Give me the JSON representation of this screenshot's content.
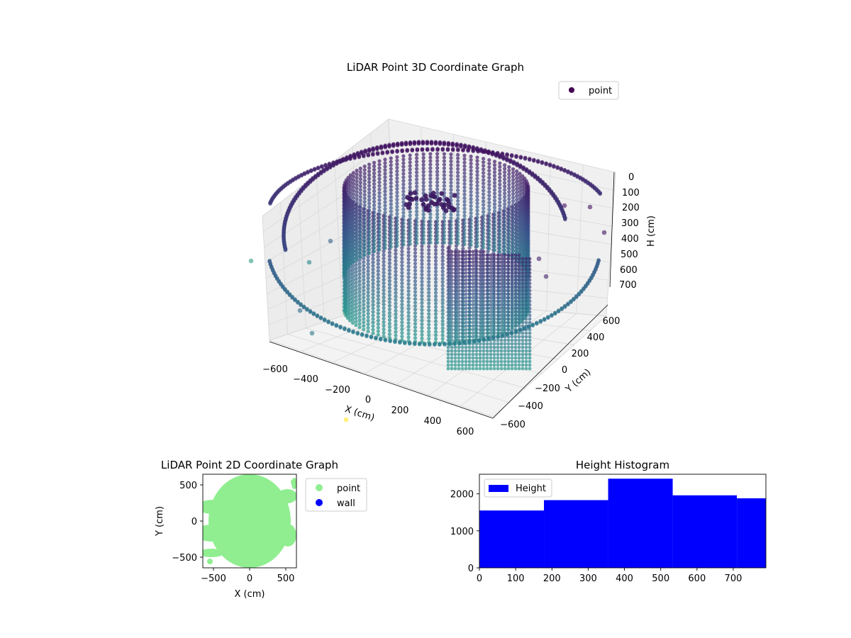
{
  "chart_data": [
    {
      "type": "scatter3d",
      "title": "LiDAR Point 3D Coordinate Graph",
      "xlabel": "X (cm)",
      "ylabel": "Y (cm)",
      "zlabel": "H (cm)",
      "xlim": [
        -650,
        650
      ],
      "ylim": [
        -650,
        650
      ],
      "zlim": [
        0,
        780
      ],
      "zinverted": true,
      "xticks": [
        "−600",
        "−400",
        "−200",
        "0",
        "200",
        "400",
        "600"
      ],
      "yticks": [
        "600",
        "400",
        "200",
        "0",
        "−200",
        "−400",
        "−600"
      ],
      "zticks": [
        "0",
        "100",
        "200",
        "300",
        "400",
        "500",
        "600",
        "700"
      ],
      "colormap": "viridis",
      "legend": {
        "placement": "top-right",
        "entries": [
          {
            "name": "point",
            "color": "#440154"
          }
        ]
      },
      "grid": true
    },
    {
      "type": "scatter",
      "title": "LiDAR Point 2D Coordinate Graph",
      "xlabel": "X (cm)",
      "ylabel": "Y (cm)",
      "xlim": [
        -650,
        650
      ],
      "ylim": [
        -650,
        650
      ],
      "xticks": [
        "−500",
        "0",
        "500"
      ],
      "yticks": [
        "500",
        "0",
        "−500"
      ],
      "series": [
        {
          "name": "point",
          "color": "#90ee90"
        },
        {
          "name": "wall",
          "color": "#0000ff"
        }
      ],
      "legend": {
        "placement": "outside-right"
      }
    },
    {
      "type": "bar",
      "title": "Height Histogram",
      "xlabel": "",
      "ylabel": "",
      "bins": [
        [
          0,
          178
        ],
        [
          178,
          355
        ],
        [
          355,
          533
        ],
        [
          533,
          710
        ],
        [
          710,
          790
        ]
      ],
      "values": [
        1550,
        1830,
        2410,
        1960,
        1880
      ],
      "xlim": [
        0,
        790
      ],
      "ylim": [
        0,
        2530
      ],
      "xticks": [
        "0",
        "100",
        "200",
        "300",
        "400",
        "500",
        "600",
        "700"
      ],
      "yticks": [
        "0",
        "1000",
        "2000"
      ],
      "color": "#0000ff",
      "legend": {
        "placement": "top-left",
        "entries": [
          {
            "name": "Height",
            "color": "#0000ff"
          }
        ]
      }
    }
  ]
}
